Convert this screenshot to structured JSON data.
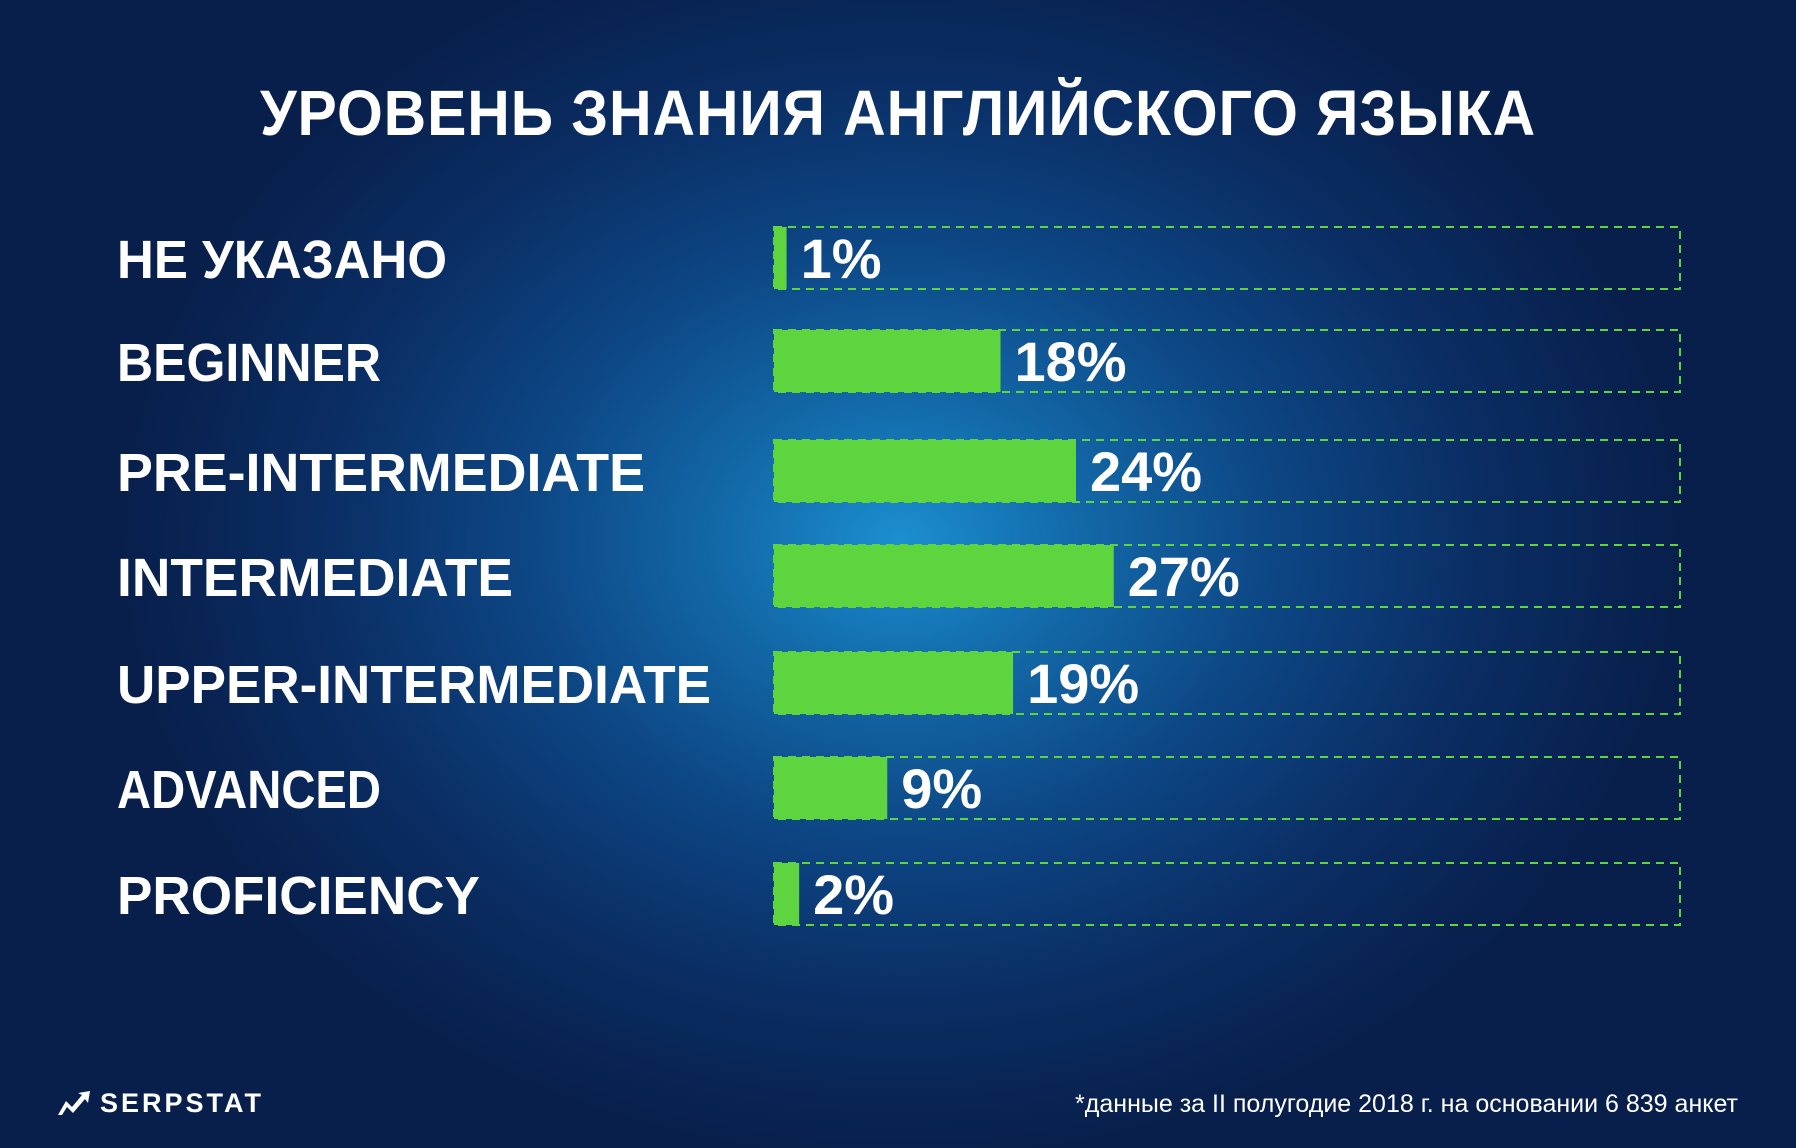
{
  "chart_data": {
    "type": "bar",
    "orientation": "horizontal",
    "title": "УРОВЕНЬ ЗНАНИЯ АНГЛИЙСКОГО ЯЗЫКА",
    "categories": [
      "НЕ УКАЗАНО",
      "BEGINNER",
      "PRE-INTERMEDIATE",
      "INTERMEDIATE",
      "UPPER-INTERMEDIATE",
      "ADVANCED",
      "PROFICIENCY"
    ],
    "values": [
      1,
      18,
      24,
      27,
      19,
      9,
      2
    ],
    "value_labels": [
      "1%",
      "18%",
      "24%",
      "27%",
      "19%",
      "9%",
      "2%"
    ],
    "value_max": 72,
    "xlabel": "",
    "ylabel": "",
    "grid": false,
    "legend": "none",
    "colors": {
      "bar": "#5ed53f",
      "track_border": "#5ed53f",
      "label": "#ffffff"
    }
  },
  "brand": {
    "name": "SERPSTAT",
    "logo_icon": "serpstat-logo-icon"
  },
  "footnote": "*данные за II полугодие 2018 г. на основании 6 839 анкет"
}
